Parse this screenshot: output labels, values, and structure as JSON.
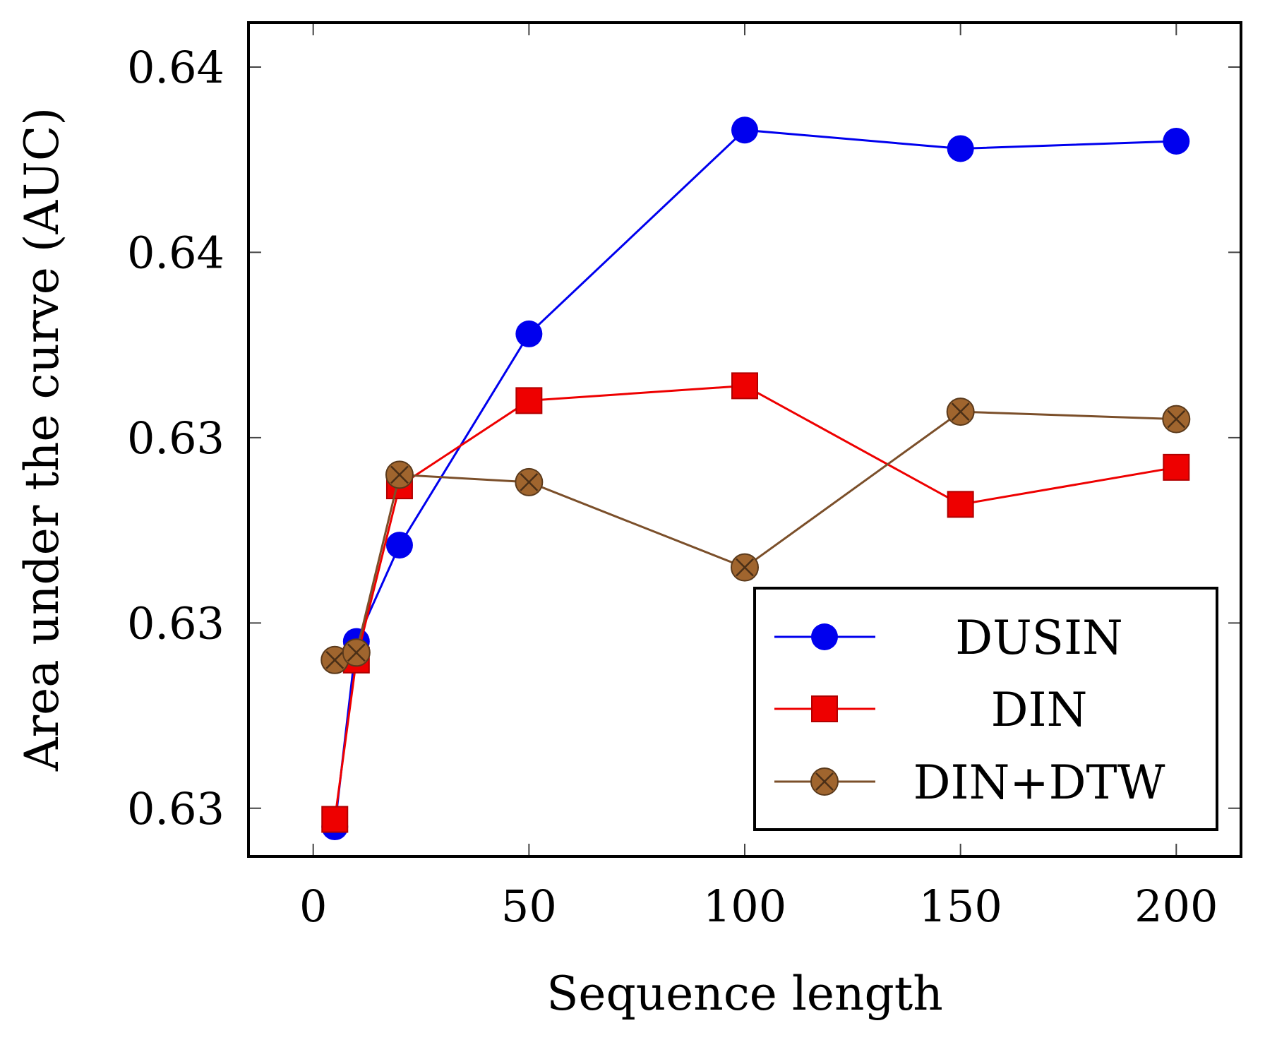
{
  "chart_data": {
    "type": "line",
    "title": "",
    "xlabel": "Sequence length",
    "ylabel": "Area under the curve (AUC)",
    "xlim": [
      -15,
      215
    ],
    "ylim": [
      0.6257,
      0.6482
    ],
    "xticks": [
      0,
      50,
      100,
      150,
      200
    ],
    "xtick_labels": [
      "0",
      "50",
      "100",
      "150",
      "200"
    ],
    "yticks": [
      0.627,
      0.632,
      0.637,
      0.642,
      0.647
    ],
    "ytick_labels": [
      "0.63",
      "0.63",
      "0.63",
      "0.64",
      "0.64"
    ],
    "grid": false,
    "legend_position": "bottom-right",
    "series": [
      {
        "name": "DUSIN",
        "color": "#0000ee",
        "marker": "circle",
        "x": [
          5,
          10,
          20,
          50,
          100,
          150,
          200
        ],
        "y": [
          0.6265,
          0.6315,
          0.6341,
          0.6398,
          0.6453,
          0.6448,
          0.645
        ]
      },
      {
        "name": "DIN",
        "color": "#ee0000",
        "marker": "square",
        "x": [
          5,
          10,
          20,
          50,
          100,
          150,
          200
        ],
        "y": [
          0.6267,
          0.631,
          0.6357,
          0.638,
          0.6384,
          0.6352,
          0.6362
        ]
      },
      {
        "name": "DIN+DTW",
        "color": "#7b4f2a",
        "marker": "circle-x",
        "x": [
          5,
          10,
          20,
          50,
          100,
          150,
          200
        ],
        "y": [
          0.631,
          0.6312,
          0.636,
          0.6358,
          0.6335,
          0.6377,
          0.6375
        ]
      }
    ]
  }
}
